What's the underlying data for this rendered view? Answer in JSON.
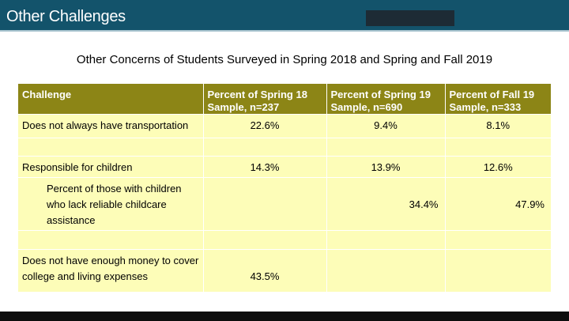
{
  "header": {
    "title": "Other Challenges"
  },
  "subtitle": "Other Concerns of Students Surveyed in Spring 2018 and Spring and Fall 2019",
  "colors": {
    "header_bg": "#13536b",
    "table_header_bg": "#8c8516",
    "table_body_bg": "#fdfdb8"
  },
  "table": {
    "columns": [
      "Challenge",
      "Percent of Spring 18 Sample, n=237",
      "Percent of Spring 19 Sample, n=690",
      "Percent of Fall 19 Sample, n=333"
    ],
    "rows": [
      {
        "challenge": "Does not always have transportation",
        "spring18": "22.6%",
        "spring19": "9.4%",
        "fall19": "8.1%"
      },
      {
        "challenge": "",
        "spring18": "",
        "spring19": "",
        "fall19": ""
      },
      {
        "challenge": "Responsible for children",
        "spring18": "14.3%",
        "spring19": "13.9%",
        "fall19": "12.6%"
      },
      {
        "challenge": "Percent of those with children who lack reliable childcare assistance",
        "spring18": "",
        "spring19": "34.4%",
        "fall19": "47.9%"
      },
      {
        "challenge": "",
        "spring18": "",
        "spring19": "",
        "fall19": ""
      },
      {
        "challenge": "Does not have enough money to cover college and living expenses",
        "spring18": "43.5%",
        "spring19": "",
        "fall19": ""
      }
    ]
  }
}
